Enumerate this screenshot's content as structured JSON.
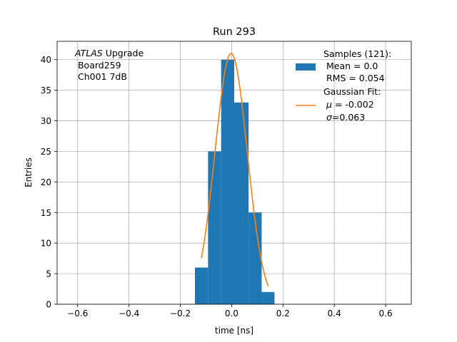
{
  "chart_data": {
    "type": "bar",
    "title": "Run 293",
    "xlabel": "time [ns]",
    "ylabel": "Entries",
    "xlim": [
      -0.68,
      0.7
    ],
    "ylim": [
      0,
      43
    ],
    "grid": true,
    "x_ticks": [
      -0.6,
      -0.4,
      -0.2,
      0.0,
      0.2,
      0.4,
      0.6
    ],
    "x_tick_labels": [
      "−0.6",
      "−0.4",
      "−0.2",
      "0.0",
      "0.2",
      "0.4",
      "0.6"
    ],
    "y_ticks": [
      0,
      5,
      10,
      15,
      20,
      25,
      30,
      35,
      40
    ],
    "y_tick_labels": [
      "0",
      "5",
      "10",
      "15",
      "20",
      "25",
      "30",
      "35",
      "40"
    ],
    "bin_edges": [
      -0.143,
      -0.092,
      -0.041,
      0.01,
      0.066,
      0.117,
      0.167
    ],
    "hist_values": [
      6,
      25,
      40,
      33,
      15,
      2
    ],
    "hist_color": "#1f77b4",
    "fit": {
      "mu": -0.002,
      "sigma": 0.063,
      "amplitude": 41,
      "x_range": [
        -0.118,
        0.143
      ],
      "color": "#ff7f0e"
    },
    "annotation": {
      "italic_part": "ATLAS",
      "line1_rest": " Upgrade",
      "line2": " Board259",
      "line3": " Ch001 7dB"
    },
    "legend": {
      "position": "top-right",
      "samples_title": "Samples (121):",
      "samples_mean": " Mean = 0.0",
      "samples_rms": " RMS = 0.054",
      "fit_title": "Gaussian Fit:",
      "fit_mu_symbol": "μ",
      "fit_mu_rest": " = -0.002",
      "fit_sigma_symbol": "σ",
      "fit_sigma_rest": "=0.063"
    }
  }
}
